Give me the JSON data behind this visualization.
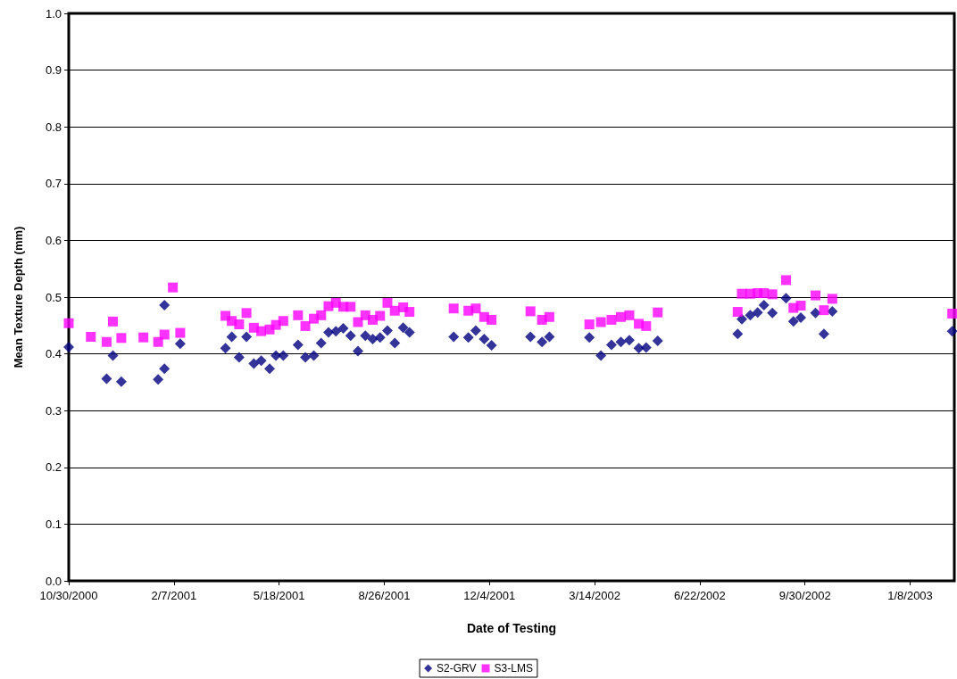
{
  "chart_data": {
    "type": "scatter",
    "xlabel": "Date of Testing",
    "ylabel": "Mean Texture Depth (mm)",
    "xlim": [
      "2000-10-30",
      "2003-02-19"
    ],
    "xticks": [
      {
        "value": "2000-10-30",
        "label": "10/30/2000"
      },
      {
        "value": "2001-02-07",
        "label": "2/7/2001"
      },
      {
        "value": "2001-05-18",
        "label": "5/18/2001"
      },
      {
        "value": "2001-08-26",
        "label": "8/26/2001"
      },
      {
        "value": "2001-12-04",
        "label": "12/4/2001"
      },
      {
        "value": "2002-03-14",
        "label": "3/14/2002"
      },
      {
        "value": "2002-06-22",
        "label": "6/22/2002"
      },
      {
        "value": "2002-09-30",
        "label": "9/30/2002"
      },
      {
        "value": "2003-01-08",
        "label": "1/8/2003"
      }
    ],
    "ylim": [
      0,
      1
    ],
    "yticks": [
      {
        "value": 0,
        "label": "0.0"
      },
      0.1,
      0.2,
      0.3,
      0.4,
      0.5,
      0.6,
      0.7,
      0.8,
      0.9,
      {
        "value": 1,
        "label": "1.0"
      }
    ],
    "grid": "y",
    "legend": "bottom",
    "series": [
      {
        "name": "S2-GRV",
        "color": "#000080",
        "marker": "diamond",
        "x": [
          "2000-10-30",
          "2000-12-05",
          "2000-12-11",
          "2000-12-19",
          "2001-01-23",
          "2001-01-29",
          "2001-01-29",
          "2001-02-13",
          "2001-03-28",
          "2001-04-03",
          "2001-04-10",
          "2001-04-17",
          "2001-04-24",
          "2001-05-01",
          "2001-05-09",
          "2001-05-15",
          "2001-05-22",
          "2001-06-05",
          "2001-06-12",
          "2001-06-20",
          "2001-06-27",
          "2001-07-04",
          "2001-07-11",
          "2001-07-18",
          "2001-07-25",
          "2001-08-01",
          "2001-08-08",
          "2001-08-15",
          "2001-08-22",
          "2001-08-29",
          "2001-09-05",
          "2001-09-13",
          "2001-09-19",
          "2001-10-31",
          "2001-11-14",
          "2001-11-21",
          "2001-11-29",
          "2001-12-06",
          "2002-01-12",
          "2002-01-23",
          "2002-01-30",
          "2002-03-09",
          "2002-03-20",
          "2002-03-30",
          "2002-04-08",
          "2002-04-16",
          "2002-04-25",
          "2002-05-02",
          "2002-05-13",
          "2002-07-28",
          "2002-08-01",
          "2002-08-09",
          "2002-08-16",
          "2002-08-22",
          "2002-08-30",
          "2002-09-12",
          "2002-09-19",
          "2002-09-26",
          "2002-10-10",
          "2002-10-18",
          "2002-10-26",
          "2003-02-17"
        ],
        "values": [
          0.412,
          0.356,
          0.397,
          0.351,
          0.355,
          0.374,
          0.486,
          0.418,
          0.41,
          0.43,
          0.394,
          0.43,
          0.383,
          0.388,
          0.374,
          0.397,
          0.397,
          0.416,
          0.394,
          0.397,
          0.419,
          0.438,
          0.44,
          0.445,
          0.432,
          0.405,
          0.432,
          0.426,
          0.429,
          0.441,
          0.419,
          0.446,
          0.438,
          0.43,
          0.429,
          0.441,
          0.426,
          0.415,
          0.43,
          0.421,
          0.43,
          0.429,
          0.397,
          0.416,
          0.421,
          0.424,
          0.41,
          0.411,
          0.423,
          0.435,
          0.461,
          0.468,
          0.473,
          0.486,
          0.472,
          0.498,
          0.457,
          0.464,
          0.472,
          0.435,
          0.475,
          0.44
        ]
      },
      {
        "name": "S3-LMS",
        "color": "#ff00ff",
        "marker": "square",
        "x": [
          "2000-10-30",
          "2000-11-20",
          "2000-12-05",
          "2000-12-11",
          "2000-12-19",
          "2001-01-09",
          "2001-01-23",
          "2001-01-29",
          "2001-02-06",
          "2001-02-13",
          "2001-03-28",
          "2001-04-03",
          "2001-04-10",
          "2001-04-17",
          "2001-04-24",
          "2001-05-01",
          "2001-05-09",
          "2001-05-15",
          "2001-05-22",
          "2001-06-05",
          "2001-06-12",
          "2001-06-20",
          "2001-06-27",
          "2001-07-04",
          "2001-07-11",
          "2001-07-18",
          "2001-07-25",
          "2001-08-01",
          "2001-08-08",
          "2001-08-15",
          "2001-08-22",
          "2001-08-29",
          "2001-09-05",
          "2001-09-13",
          "2001-09-19",
          "2001-10-31",
          "2001-11-14",
          "2001-11-21",
          "2001-11-29",
          "2001-12-06",
          "2002-01-12",
          "2002-01-23",
          "2002-01-30",
          "2002-03-09",
          "2002-03-20",
          "2002-03-30",
          "2002-04-08",
          "2002-04-16",
          "2002-04-25",
          "2002-05-02",
          "2002-05-13",
          "2002-07-28",
          "2002-08-01",
          "2002-08-09",
          "2002-08-16",
          "2002-08-22",
          "2002-08-30",
          "2002-09-12",
          "2002-09-19",
          "2002-09-26",
          "2002-10-10",
          "2002-10-18",
          "2002-10-26",
          "2003-02-17"
        ],
        "values": [
          0.454,
          0.43,
          0.421,
          0.457,
          0.428,
          0.429,
          0.421,
          0.434,
          0.517,
          0.437,
          0.467,
          0.458,
          0.452,
          0.472,
          0.446,
          0.44,
          0.443,
          0.451,
          0.458,
          0.468,
          0.449,
          0.462,
          0.468,
          0.484,
          0.49,
          0.483,
          0.483,
          0.456,
          0.468,
          0.46,
          0.467,
          0.49,
          0.476,
          0.482,
          0.474,
          0.48,
          0.476,
          0.48,
          0.465,
          0.46,
          0.475,
          0.46,
          0.465,
          0.452,
          0.456,
          0.46,
          0.465,
          0.468,
          0.453,
          0.449,
          0.473,
          0.474,
          0.506,
          0.506,
          0.507,
          0.507,
          0.505,
          0.53,
          0.481,
          0.485,
          0.503,
          0.477,
          0.497,
          0.471
        ]
      }
    ]
  }
}
